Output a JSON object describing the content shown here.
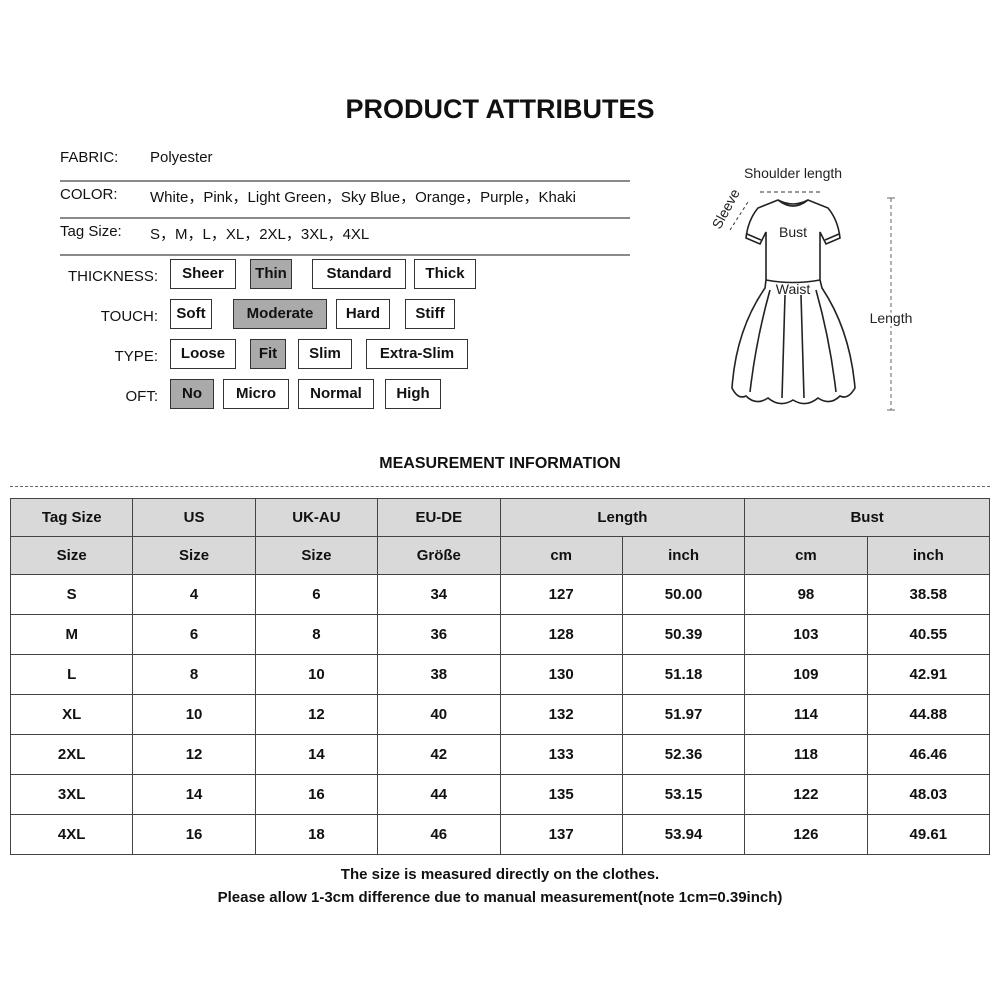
{
  "title": "PRODUCT ATTRIBUTES",
  "attributes": [
    {
      "label": "FABRIC:",
      "value": "Polyester"
    },
    {
      "label": "COLOR:",
      "value": "White，Pink，Light Green，Sky Blue，Orange，Purple，Khaki"
    },
    {
      "label": "Tag Size:",
      "value": "S，M，L，XL，2XL，3XL，4XL"
    }
  ],
  "options": {
    "thickness": {
      "label": "THICKNESS:",
      "items": [
        "Sheer",
        "Thin",
        "Standard",
        "Thick"
      ],
      "selected": "Thin"
    },
    "touch": {
      "label": "TOUCH:",
      "items": [
        "Soft",
        "Moderate",
        "Hard",
        "Stiff"
      ],
      "selected": "Moderate"
    },
    "type": {
      "label": "TYPE:",
      "items": [
        "Loose",
        "Fit",
        "Slim",
        "Extra-Slim"
      ],
      "selected": "Fit"
    },
    "oft": {
      "label": "OFT:",
      "items": [
        "No",
        "Micro",
        "Normal",
        "High"
      ],
      "selected": "No"
    }
  },
  "diagram": {
    "shoulder": "Shoulder length",
    "sleeve": "Sleeve",
    "bust": "Bust",
    "waist": "Waist",
    "length": "Length"
  },
  "measurement_title": "MEASUREMENT INFORMATION",
  "table": {
    "header1": [
      "Tag Size",
      "US",
      "UK-AU",
      "EU-DE",
      "Length",
      "Bust"
    ],
    "header2": [
      "Size",
      "Size",
      "Size",
      "Größe",
      "cm",
      "inch",
      "cm",
      "inch"
    ],
    "rows": [
      [
        "S",
        "4",
        "6",
        "34",
        "127",
        "50.00",
        "98",
        "38.58"
      ],
      [
        "M",
        "6",
        "8",
        "36",
        "128",
        "50.39",
        "103",
        "40.55"
      ],
      [
        "L",
        "8",
        "10",
        "38",
        "130",
        "51.18",
        "109",
        "42.91"
      ],
      [
        "XL",
        "10",
        "12",
        "40",
        "132",
        "51.97",
        "114",
        "44.88"
      ],
      [
        "2XL",
        "12",
        "14",
        "42",
        "133",
        "52.36",
        "118",
        "46.46"
      ],
      [
        "3XL",
        "14",
        "16",
        "44",
        "135",
        "53.15",
        "122",
        "48.03"
      ],
      [
        "4XL",
        "16",
        "18",
        "46",
        "137",
        "53.94",
        "126",
        "49.61"
      ]
    ]
  },
  "notes": [
    "The size is measured directly on the clothes.",
    "Please allow 1-3cm difference due to manual measurement(note 1cm=0.39inch)"
  ],
  "colors": {
    "selected_option": "#aaaaaa",
    "table_header": "#d9d9d9"
  }
}
